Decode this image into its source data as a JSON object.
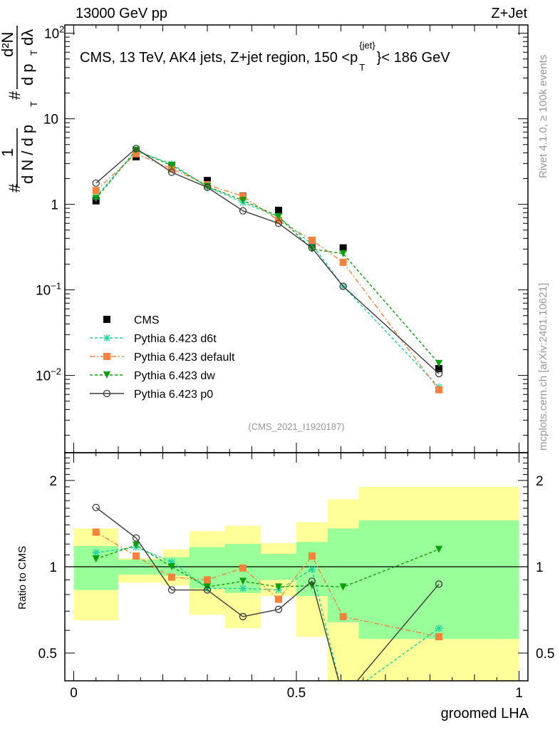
{
  "header": {
    "left": "13000 GeV pp",
    "right": "Z+Jet"
  },
  "side_labels": {
    "rivet": "Rivet 4.1.0, ≥ 100k events",
    "mcplots": "mcplots.cern.ch [arXiv:2401.10621]"
  },
  "chart_data": [
    {
      "type": "line",
      "title": "CMS, 13 TeV, AK4 jets, Z+jet region, 150 <p",
      "title_sup": "{jet}",
      "title_sub": "T",
      "title_end": "}< 186 GeV",
      "analysis_id": "(CMS_2021_I1920187)",
      "ylabel_parts": [
        "#",
        "1",
        "d N / d p",
        "T",
        "#",
        "d²N",
        "d p",
        "T",
        "dλ"
      ],
      "yscale": "log",
      "ylim": [
        0.00125,
        125
      ],
      "xlim": [
        -0.02,
        1.02
      ],
      "ytick_labels": [
        {
          "v": 100,
          "t": "10",
          "e": "2"
        },
        {
          "v": 10,
          "t": "10",
          "e": ""
        },
        {
          "v": 1,
          "t": "1",
          "e": ""
        },
        {
          "v": 0.1,
          "t": "10",
          "e": "−1"
        },
        {
          "v": 0.01,
          "t": "10",
          "e": "−2"
        }
      ],
      "legend_position": "lower-left",
      "x": [
        0.05,
        0.14,
        0.22,
        0.3,
        0.38,
        0.46,
        0.535,
        0.605,
        0.82
      ],
      "series": [
        {
          "name": "CMS",
          "color": "#000000",
          "marker": "square",
          "values": [
            1.1,
            3.6,
            2.85,
            1.9,
            1.25,
            0.85,
            0.35,
            0.31,
            0.012
          ]
        },
        {
          "name": "Pythia 6.423 d6t",
          "color": "#18d5a0",
          "marker": "star",
          "dash": "4,3",
          "values": [
            1.23,
            4.2,
            2.96,
            1.6,
            1.05,
            0.71,
            0.34,
            0.11,
            0.0073
          ]
        },
        {
          "name": "Pythia 6.423 default",
          "color": "#f5823c",
          "marker": "square",
          "dash": "7,3,2,3",
          "values": [
            1.45,
            3.9,
            2.6,
            1.7,
            1.24,
            0.65,
            0.38,
            0.21,
            0.0068
          ]
        },
        {
          "name": "Pythia 6.423 dw",
          "color": "#0aa00a",
          "marker": "triangle-down",
          "dash": "4,3",
          "values": [
            1.17,
            4.3,
            2.85,
            1.62,
            1.11,
            0.72,
            0.3,
            0.265,
            0.0138
          ]
        },
        {
          "name": "Pythia 6.423 p0",
          "color": "#3c3c3c",
          "marker": "open-circle",
          "values": [
            1.77,
            4.5,
            2.37,
            1.58,
            0.84,
            0.6,
            0.31,
            0.11,
            0.0105
          ]
        }
      ]
    },
    {
      "type": "line",
      "ylabel": "Ratio to CMS",
      "xlabel": "groomed LHA",
      "yscale": "log",
      "ylim": [
        0.4,
        2.5
      ],
      "xlim": [
        -0.02,
        1.02
      ],
      "ytick_labels": [
        {
          "v": 2,
          "t": "2"
        },
        {
          "v": 1,
          "t": "1"
        },
        {
          "v": 0.5,
          "t": "0.5"
        }
      ],
      "xtick_labels": [
        {
          "v": 0,
          "t": "0"
        },
        {
          "v": 0.5,
          "t": "0.5"
        },
        {
          "v": 1,
          "t": "1"
        }
      ],
      "bin_edges": [
        0,
        0.1,
        0.2,
        0.26,
        0.34,
        0.42,
        0.5,
        0.57,
        0.64,
        1.0
      ],
      "band_stat": {
        "color": "#99ff99",
        "low": [
          0.83,
          0.94,
          0.93,
          0.84,
          0.81,
          0.9,
          0.79,
          0.64,
          0.56
        ],
        "high": [
          1.18,
          1.06,
          1.08,
          1.17,
          1.2,
          1.11,
          1.22,
          1.36,
          1.45
        ]
      },
      "band_total": {
        "color": "#ffff99",
        "low": [
          0.65,
          0.88,
          0.86,
          0.68,
          0.61,
          0.79,
          0.57,
          0.3,
          0.3
        ],
        "high": [
          1.36,
          1.07,
          1.15,
          1.33,
          1.39,
          1.21,
          1.43,
          1.72,
          1.9
        ]
      },
      "x": [
        0.05,
        0.14,
        0.22,
        0.3,
        0.38,
        0.46,
        0.535,
        0.605,
        0.82
      ],
      "series": [
        {
          "name": "Pythia 6.423 d6t",
          "color": "#18d5a0",
          "marker": "star",
          "dash": "4,3",
          "values": [
            1.12,
            1.17,
            1.04,
            0.84,
            0.84,
            0.83,
            0.98,
            0.35,
            0.61
          ]
        },
        {
          "name": "Pythia 6.423 default",
          "color": "#f5823c",
          "marker": "square",
          "dash": "7,3,2,3",
          "values": [
            1.32,
            1.09,
            0.92,
            0.9,
            0.99,
            0.77,
            1.09,
            0.67,
            0.57
          ]
        },
        {
          "name": "Pythia 6.423 dw",
          "color": "#0aa00a",
          "marker": "triangle-down",
          "dash": "4,3",
          "values": [
            1.065,
            1.19,
            1.0,
            0.85,
            0.89,
            0.85,
            0.86,
            0.85,
            1.15
          ]
        },
        {
          "name": "Pythia 6.423 p0",
          "color": "#3c3c3c",
          "marker": "open-circle",
          "values": [
            1.61,
            1.26,
            0.83,
            0.83,
            0.67,
            0.71,
            0.89,
            0.35,
            0.87
          ]
        }
      ]
    }
  ]
}
